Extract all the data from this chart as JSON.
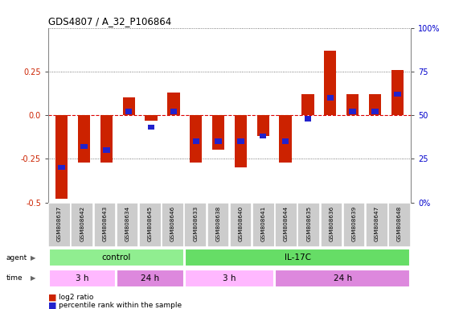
{
  "title": "GDS4807 / A_32_P106864",
  "samples": [
    "GSM808637",
    "GSM808642",
    "GSM808643",
    "GSM808634",
    "GSM808645",
    "GSM808646",
    "GSM808633",
    "GSM808638",
    "GSM808640",
    "GSM808641",
    "GSM808644",
    "GSM808635",
    "GSM808636",
    "GSM808639",
    "GSM808647",
    "GSM808648"
  ],
  "log2_ratio": [
    -0.48,
    -0.27,
    -0.27,
    0.1,
    -0.03,
    0.13,
    -0.27,
    -0.2,
    -0.3,
    -0.12,
    -0.27,
    0.12,
    0.37,
    0.12,
    0.12,
    0.26
  ],
  "percentile": [
    20,
    32,
    30,
    52,
    43,
    52,
    35,
    35,
    35,
    38,
    35,
    48,
    60,
    52,
    52,
    62
  ],
  "agent_groups": [
    {
      "label": "control",
      "start": 0,
      "end": 6,
      "color": "#90EE90"
    },
    {
      "label": "IL-17C",
      "start": 6,
      "end": 16,
      "color": "#66DD66"
    }
  ],
  "time_groups": [
    {
      "label": "3 h",
      "start": 0,
      "end": 3,
      "color": "#FFB8FF"
    },
    {
      "label": "24 h",
      "start": 3,
      "end": 6,
      "color": "#DD88DD"
    },
    {
      "label": "3 h",
      "start": 6,
      "end": 10,
      "color": "#FFB8FF"
    },
    {
      "label": "24 h",
      "start": 10,
      "end": 16,
      "color": "#DD88DD"
    }
  ],
  "ylim": [
    -0.5,
    0.5
  ],
  "yticks_left": [
    -0.5,
    -0.25,
    0.0,
    0.25
  ],
  "yticks_right": [
    0,
    25,
    50,
    75,
    100
  ],
  "bar_color_red": "#CC2200",
  "bar_color_blue": "#2222CC",
  "hline_color": "#DD0000",
  "dotted_color": "#555555",
  "bg_color": "#FFFFFF",
  "sample_bg": "#CCCCCC",
  "legend_red": "log2 ratio",
  "legend_blue": "percentile rank within the sample",
  "ylabel_left_color": "#CC2200",
  "ylabel_right_color": "#0000CC"
}
